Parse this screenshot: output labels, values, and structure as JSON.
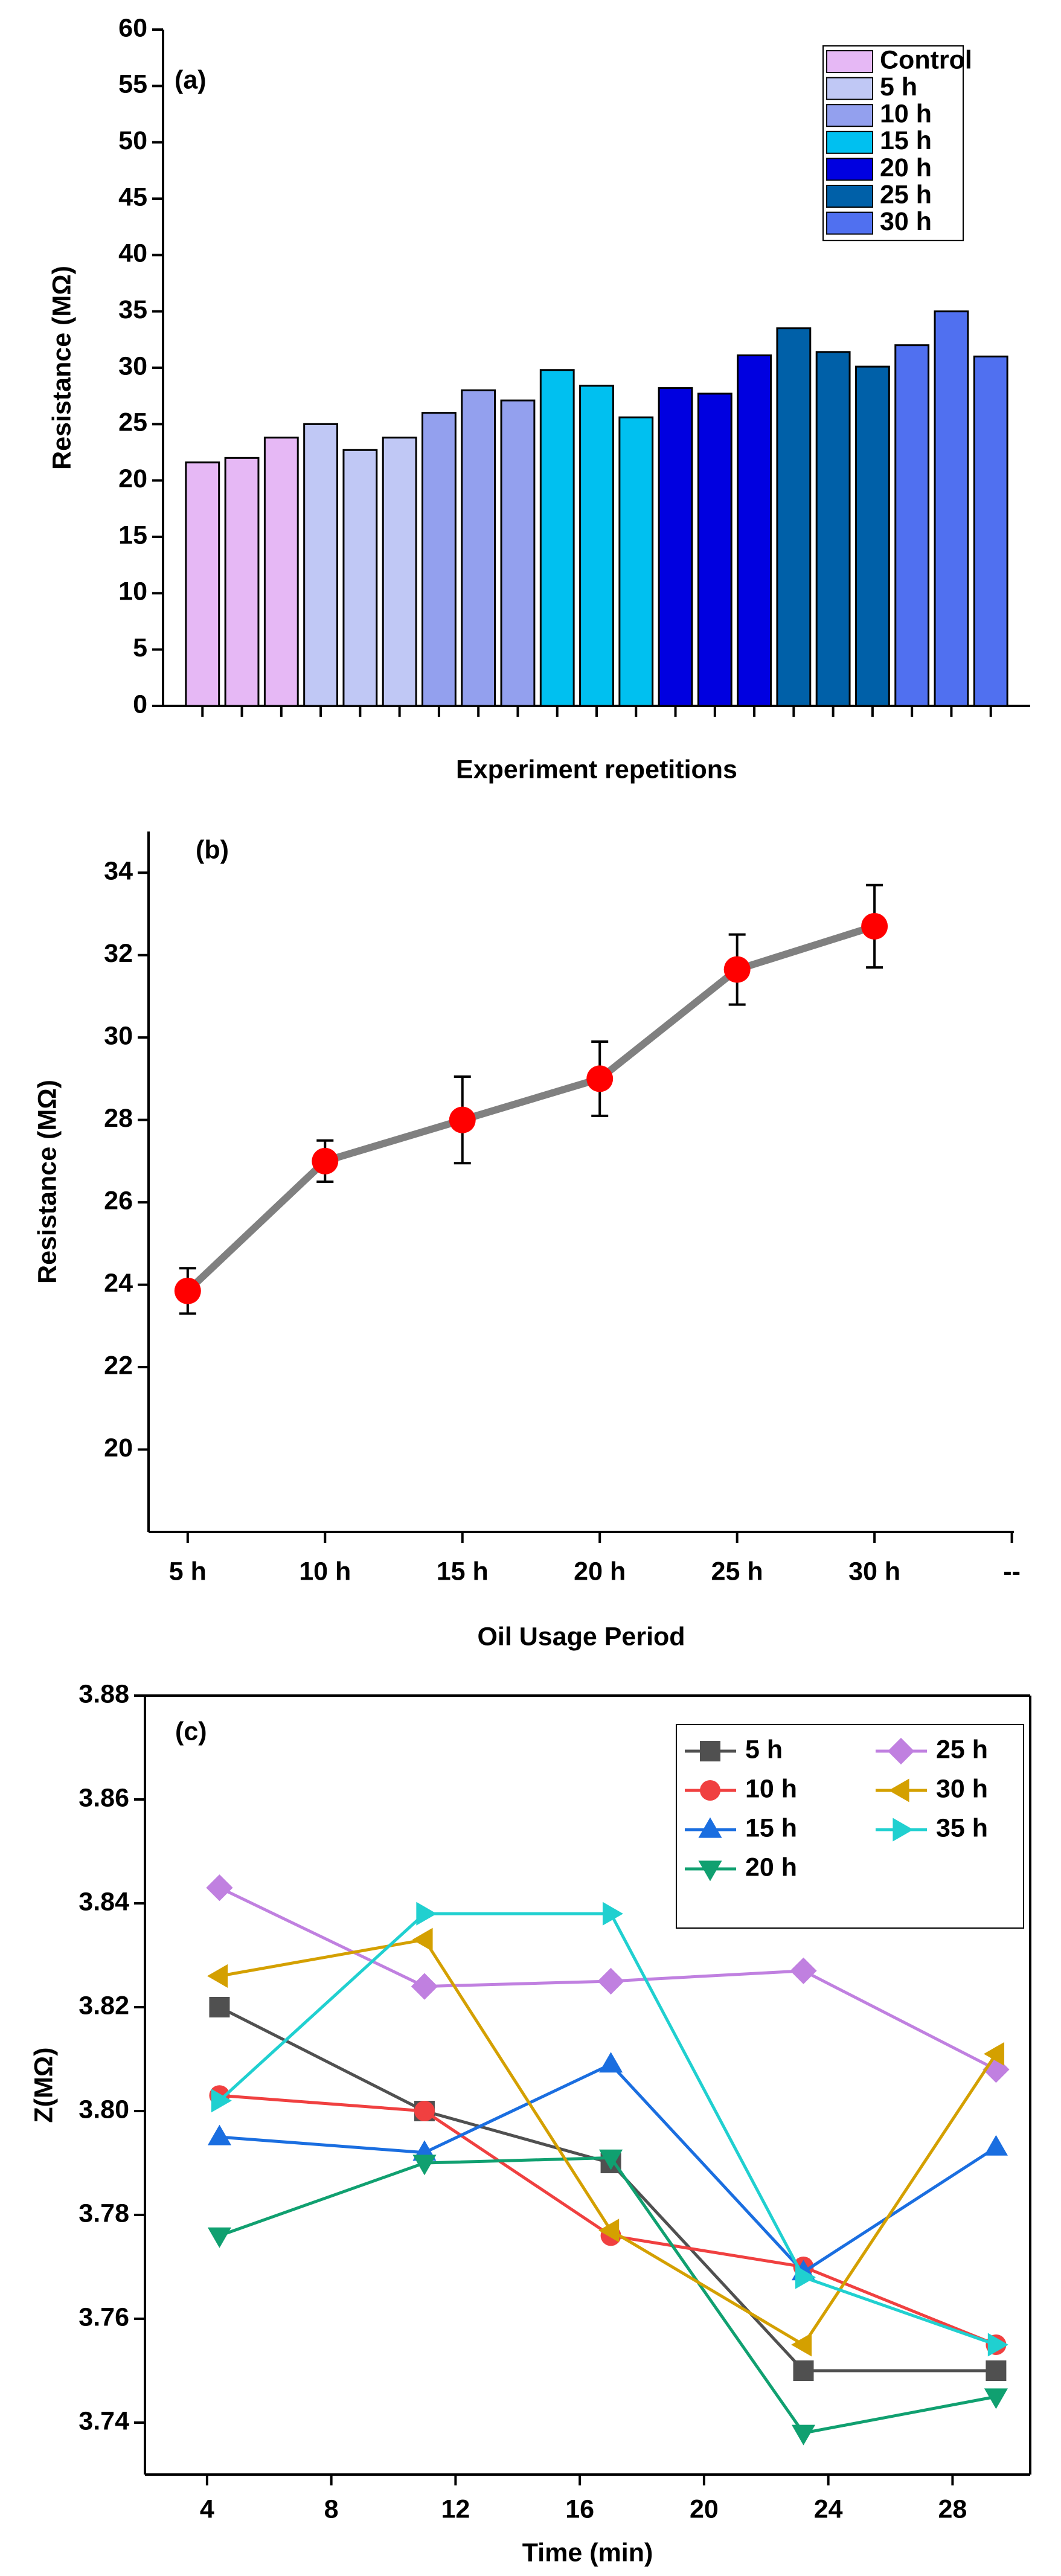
{
  "chart_data": [
    {
      "type": "bar",
      "label": "(a)",
      "ylabel": "Resistance (MΩ)",
      "xlabel": "Experiment repetitions",
      "ylim": [
        0,
        60
      ],
      "yticks": [
        0,
        5,
        10,
        15,
        20,
        25,
        30,
        35,
        40,
        45,
        50,
        55,
        60
      ],
      "legend": "upper right",
      "series": [
        {
          "name": "Control",
          "color": "#e6b8f5",
          "values": [
            21.6,
            22,
            23.8
          ]
        },
        {
          "name": "5 h",
          "color": "#c0c8f5",
          "values": [
            25,
            22.7,
            23.8
          ]
        },
        {
          "name": "10 h",
          "color": "#93a0ee",
          "values": [
            26,
            28,
            27.1
          ]
        },
        {
          "name": "15 h",
          "color": "#00c0f0",
          "values": [
            29.8,
            28.4,
            25.6
          ]
        },
        {
          "name": "20 h",
          "color": "#0000e0",
          "values": [
            28.2,
            27.7,
            31.1
          ]
        },
        {
          "name": "25 h",
          "color": "#0060a8",
          "values": [
            33.5,
            31.4,
            30.1
          ]
        },
        {
          "name": "30 h",
          "color": "#5070f0",
          "values": [
            32,
            35,
            31
          ]
        }
      ]
    },
    {
      "type": "errorline",
      "label": "(b)",
      "ylabel": "Resistance (MΩ)",
      "xlabel": "Oil Usage Period",
      "categories": [
        "5 h",
        "10 h",
        "15 h",
        "20 h",
        "25 h",
        "30 h",
        "--"
      ],
      "values": [
        23.85,
        27,
        28,
        29,
        31.65,
        32.7,
        null
      ],
      "errors": [
        0.55,
        0.5,
        1.05,
        0.9,
        0.85,
        1.0,
        null
      ],
      "color": "#808080",
      "marker_color": "#ff0000",
      "ylim": [
        18,
        35
      ],
      "yticks": [
        20,
        22,
        24,
        26,
        28,
        30,
        32,
        34
      ]
    },
    {
      "type": "line",
      "label": "(c)",
      "ylabel": "Z(MΩ)",
      "xlabel": "Time (min)",
      "x": [
        4.4,
        11,
        17,
        23.2,
        29.4
      ],
      "xlim": [
        2,
        30.5
      ],
      "xticks": [
        4,
        8,
        12,
        16,
        20,
        24,
        28
      ],
      "ylim": [
        3.73,
        3.88
      ],
      "yticks": [
        3.74,
        3.76,
        3.78,
        {
          "value": 3.8,
          "label": "3.80"
        },
        3.82,
        3.84,
        3.86,
        3.88
      ],
      "legend": "upper right",
      "legend_columns": 2,
      "series": [
        {
          "name": "5 h",
          "color": "#505050",
          "marker": "square",
          "values": [
            3.82,
            3.8,
            3.79,
            3.75,
            3.75
          ]
        },
        {
          "name": "10 h",
          "color": "#f04040",
          "marker": "circle",
          "values": [
            3.803,
            3.8,
            3.776,
            3.77,
            3.755
          ]
        },
        {
          "name": "15 h",
          "color": "#1a6ee0",
          "marker": "triangle-up",
          "values": [
            3.795,
            3.792,
            3.809,
            3.769,
            3.793
          ]
        },
        {
          "name": "20 h",
          "color": "#10a070",
          "marker": "triangle-down",
          "values": [
            3.776,
            3.79,
            3.791,
            3.738,
            3.745
          ]
        },
        {
          "name": "25 h",
          "color": "#c080e0",
          "marker": "diamond",
          "values": [
            3.843,
            3.824,
            3.825,
            3.827,
            3.808
          ]
        },
        {
          "name": "30 h",
          "color": "#d4a000",
          "marker": "triangle-left",
          "values": [
            3.826,
            3.833,
            3.777,
            3.755,
            3.811
          ]
        },
        {
          "name": "35 h",
          "color": "#20d0d0",
          "marker": "triangle-right",
          "values": [
            3.802,
            3.838,
            3.838,
            3.768,
            3.755
          ]
        }
      ]
    }
  ]
}
